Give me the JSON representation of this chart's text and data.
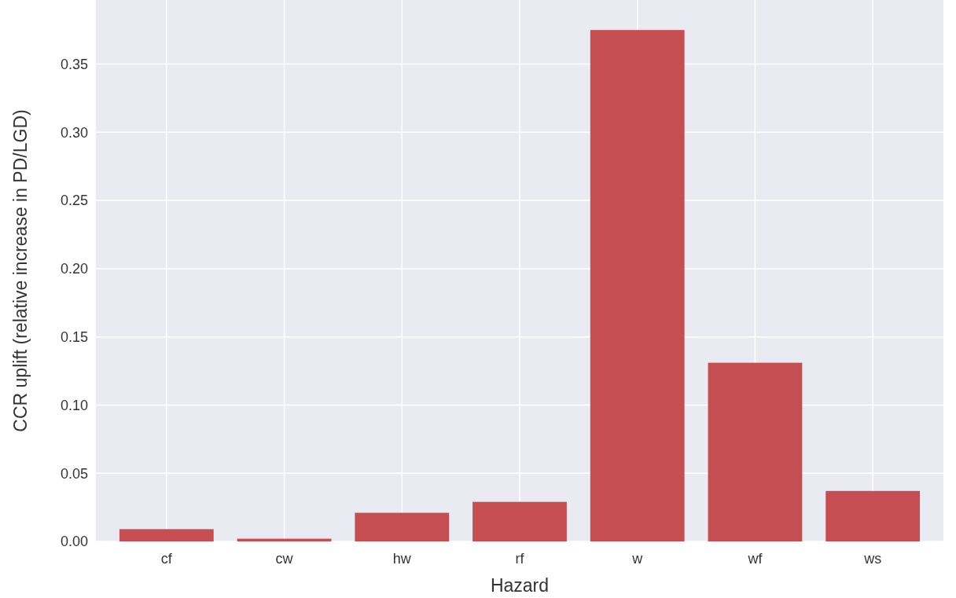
{
  "chart_data": {
    "type": "bar",
    "xlabel": "Hazard",
    "ylabel": "CCR uplift (relative increase in PD/LGD)",
    "categories": [
      "cf",
      "cw",
      "hw",
      "rf",
      "w",
      "wf",
      "ws"
    ],
    "values": [
      0.009,
      0.002,
      0.021,
      0.029,
      0.375,
      0.131,
      0.037
    ],
    "color": "#c44e52",
    "ylim": [
      0,
      0.397
    ],
    "yticks": [
      {
        "value": 0,
        "label": "0.00"
      },
      {
        "value": 0.05,
        "label": "0.05"
      },
      {
        "value": 0.1,
        "label": "0.10"
      },
      {
        "value": 0.15,
        "label": "0.15"
      },
      {
        "value": 0.2,
        "label": "0.20"
      },
      {
        "value": 0.25,
        "label": "0.25"
      },
      {
        "value": 0.3,
        "label": "0.30"
      },
      {
        "value": 0.35,
        "label": "0.35"
      }
    ],
    "grid": true
  }
}
